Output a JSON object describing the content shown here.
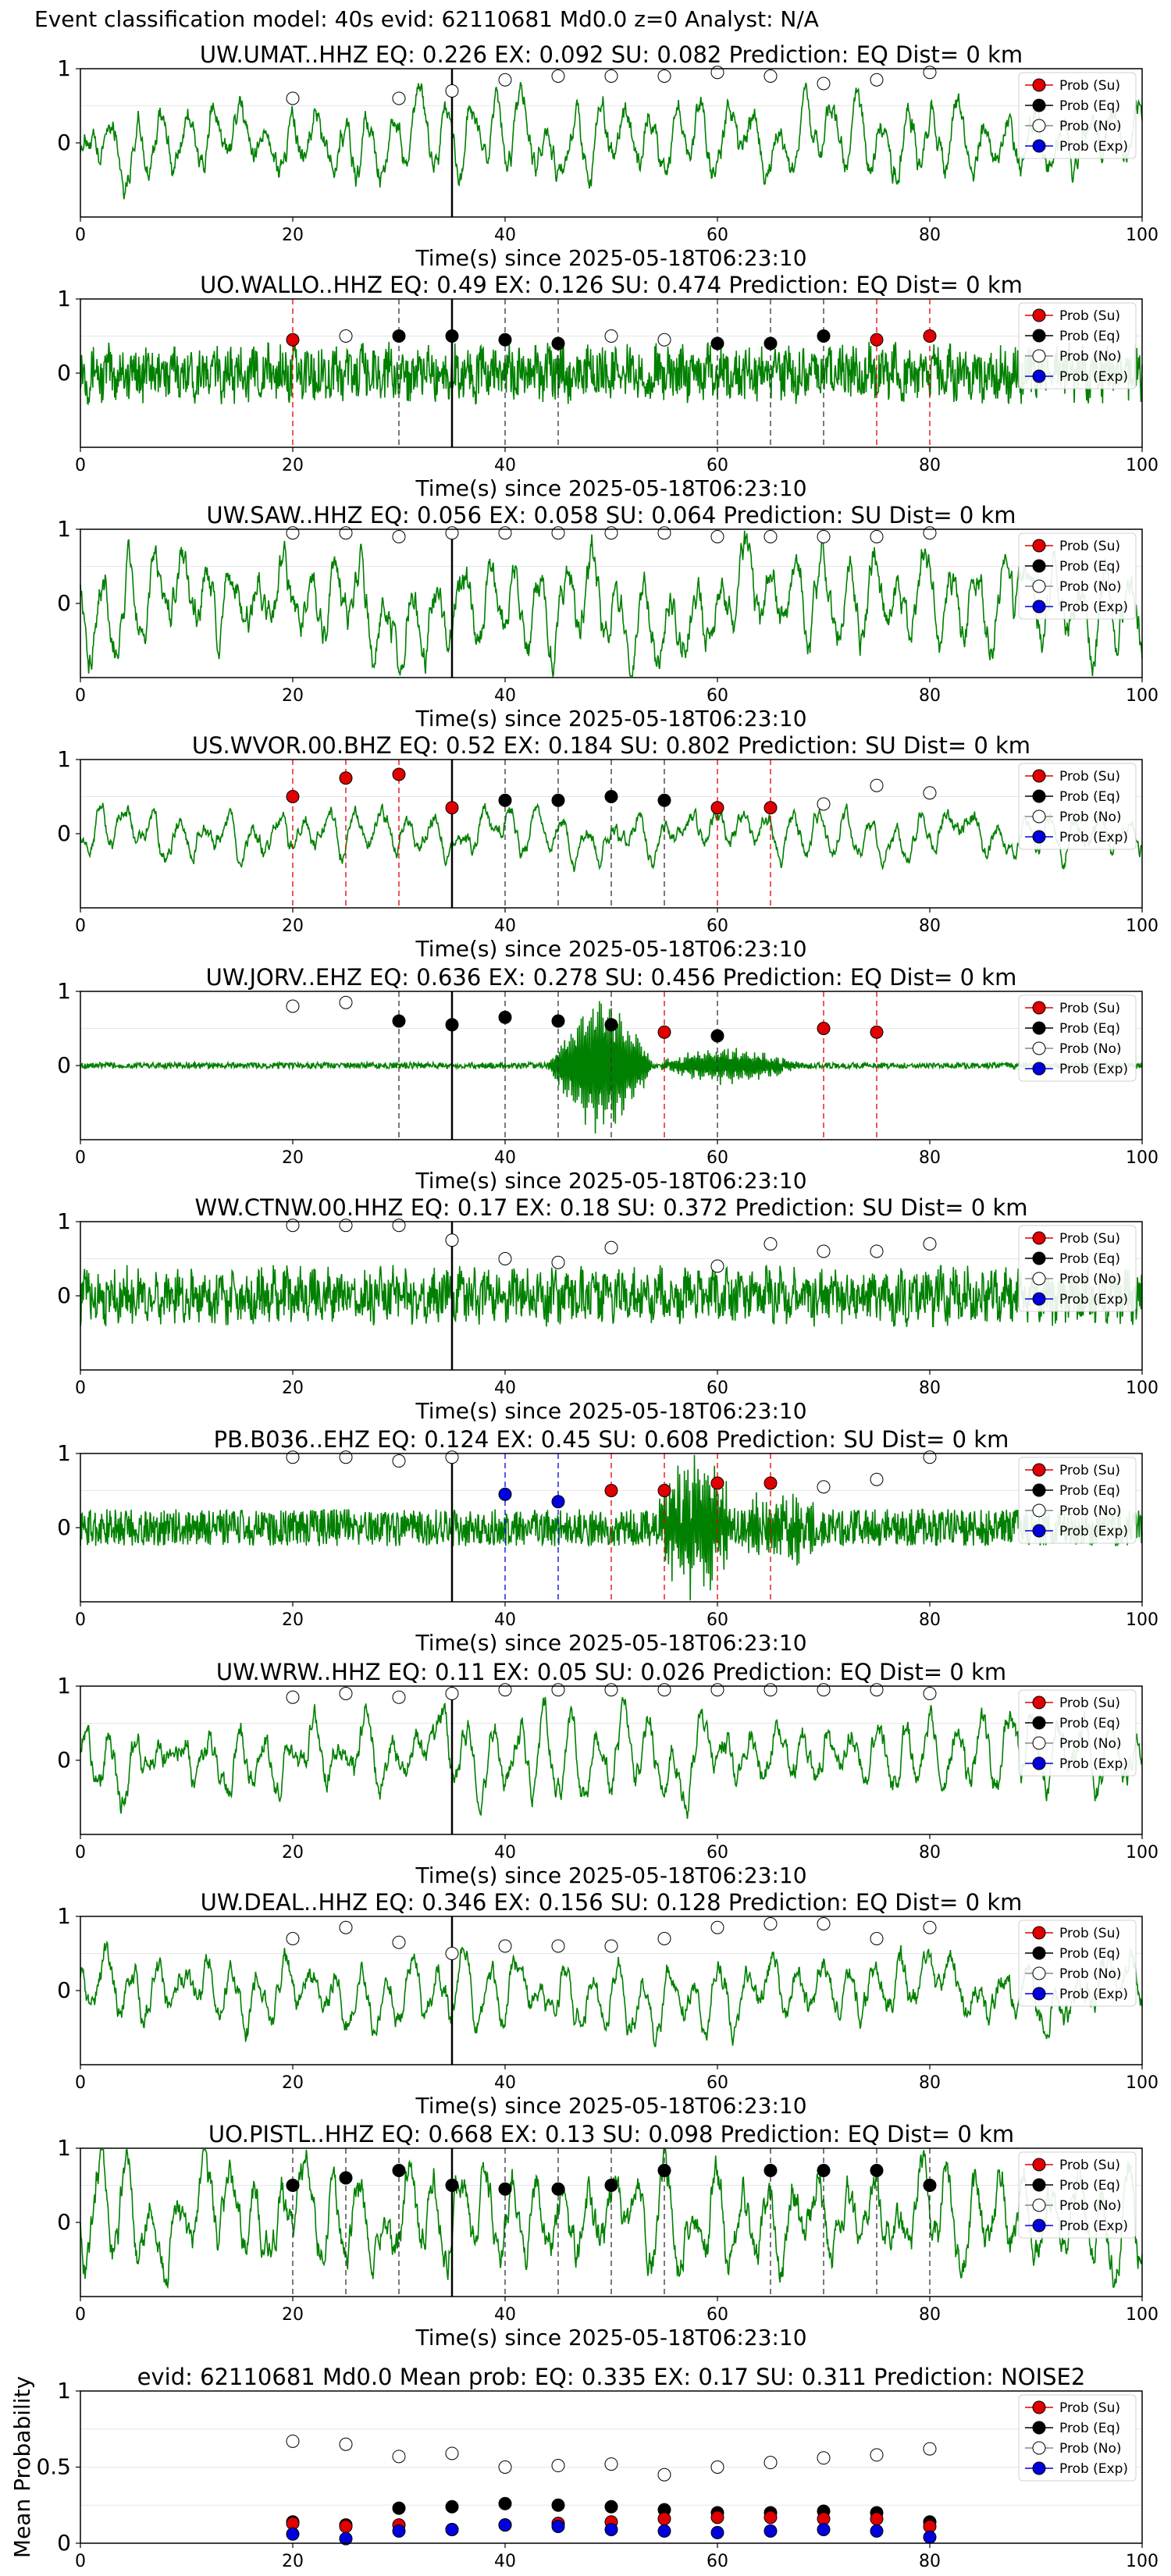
{
  "header": "Event classification model: 40s evid: 62110681 Md0.0 z=0 Analyst: N/A",
  "colors": {
    "su": "#e00000",
    "eq": "#000000",
    "no": "#ffffff",
    "exp": "#0000dd",
    "wave": "#008000"
  },
  "legend": [
    "Prob (Su)",
    "Prob (Eq)",
    "Prob (No)",
    "Prob (Exp)"
  ],
  "xlabel": "Time(s) since 2025-05-18T06:23:10",
  "xticks": [
    0,
    20,
    40,
    60,
    80,
    100
  ],
  "pick_time": 35,
  "chart_data": [
    {
      "type": "line",
      "title": "UW.UMAT..HHZ   EQ: 0.226  EX: 0.092  SU: 0.082   Prediction: EQ    Dist= 0 km",
      "style": "lowfreq",
      "amp": 0.55,
      "xlim": [
        0,
        100
      ],
      "ylim": [
        -1,
        1
      ],
      "yticks": [
        0,
        1
      ],
      "xlabel": "Time(s) since 2025-05-18T06:23:10",
      "windows": [
        {
          "t": 20,
          "p": 0.6,
          "c": "no",
          "line": false
        },
        {
          "t": 30,
          "p": 0.6,
          "c": "no",
          "line": false
        },
        {
          "t": 35,
          "p": 0.7,
          "c": "no",
          "line": false
        },
        {
          "t": 40,
          "p": 0.85,
          "c": "no",
          "line": false
        },
        {
          "t": 45,
          "p": 0.9,
          "c": "no",
          "line": false
        },
        {
          "t": 50,
          "p": 0.9,
          "c": "no",
          "line": false
        },
        {
          "t": 55,
          "p": 0.9,
          "c": "no",
          "line": false
        },
        {
          "t": 60,
          "p": 0.95,
          "c": "no",
          "line": false
        },
        {
          "t": 65,
          "p": 0.9,
          "c": "no",
          "line": false
        },
        {
          "t": 70,
          "p": 0.8,
          "c": "no",
          "line": false
        },
        {
          "t": 75,
          "p": 0.85,
          "c": "no",
          "line": false
        },
        {
          "t": 80,
          "p": 0.95,
          "c": "no",
          "line": false
        }
      ]
    },
    {
      "type": "line",
      "title": "UO.WALLO..HHZ   EQ: 0.49  EX: 0.126  SU: 0.474   Prediction: EQ    Dist= 0 km",
      "style": "noise",
      "amp": 0.45,
      "xlim": [
        0,
        100
      ],
      "ylim": [
        -1,
        1
      ],
      "yticks": [
        0,
        1
      ],
      "xlabel": "Time(s) since 2025-05-18T06:23:10",
      "windows": [
        {
          "t": 20,
          "p": 0.45,
          "c": "su",
          "line": true
        },
        {
          "t": 25,
          "p": 0.5,
          "c": "no",
          "line": false
        },
        {
          "t": 30,
          "p": 0.5,
          "c": "eq",
          "line": true
        },
        {
          "t": 35,
          "p": 0.5,
          "c": "eq",
          "line": false
        },
        {
          "t": 40,
          "p": 0.45,
          "c": "eq",
          "line": true
        },
        {
          "t": 45,
          "p": 0.4,
          "c": "eq",
          "line": true
        },
        {
          "t": 50,
          "p": 0.5,
          "c": "no",
          "line": false
        },
        {
          "t": 55,
          "p": 0.45,
          "c": "no",
          "line": false
        },
        {
          "t": 60,
          "p": 0.4,
          "c": "eq",
          "line": true
        },
        {
          "t": 65,
          "p": 0.4,
          "c": "eq",
          "line": true
        },
        {
          "t": 70,
          "p": 0.5,
          "c": "eq",
          "line": true
        },
        {
          "t": 75,
          "p": 0.45,
          "c": "su",
          "line": true
        },
        {
          "t": 80,
          "p": 0.5,
          "c": "su",
          "line": true
        }
      ]
    },
    {
      "type": "line",
      "title": "UW.SAW..HHZ   EQ: 0.056  EX: 0.058  SU: 0.064   Prediction: SU    Dist= 0 km",
      "style": "lowfreq",
      "amp": 0.7,
      "xlim": [
        0,
        100
      ],
      "ylim": [
        -1,
        1
      ],
      "yticks": [
        0,
        1
      ],
      "xlabel": "Time(s) since 2025-05-18T06:23:10",
      "windows": [
        {
          "t": 20,
          "p": 0.95,
          "c": "no",
          "line": false
        },
        {
          "t": 25,
          "p": 0.95,
          "c": "no",
          "line": false
        },
        {
          "t": 30,
          "p": 0.9,
          "c": "no",
          "line": false
        },
        {
          "t": 35,
          "p": 0.95,
          "c": "no",
          "line": false
        },
        {
          "t": 40,
          "p": 0.95,
          "c": "no",
          "line": false
        },
        {
          "t": 45,
          "p": 0.95,
          "c": "no",
          "line": false
        },
        {
          "t": 50,
          "p": 0.95,
          "c": "no",
          "line": false
        },
        {
          "t": 55,
          "p": 0.95,
          "c": "no",
          "line": false
        },
        {
          "t": 60,
          "p": 0.9,
          "c": "no",
          "line": false
        },
        {
          "t": 65,
          "p": 0.9,
          "c": "no",
          "line": false
        },
        {
          "t": 70,
          "p": 0.9,
          "c": "no",
          "line": false
        },
        {
          "t": 75,
          "p": 0.9,
          "c": "no",
          "line": false
        },
        {
          "t": 80,
          "p": 0.95,
          "c": "no",
          "line": false
        }
      ]
    },
    {
      "type": "line",
      "title": "US.WVOR.00.BHZ   EQ: 0.52  EX: 0.184  SU: 0.802   Prediction: SU    Dist= 0 km",
      "style": "lowfreq",
      "amp": 0.35,
      "xlim": [
        0,
        100
      ],
      "ylim": [
        -1,
        1
      ],
      "yticks": [
        0,
        1
      ],
      "xlabel": "Time(s) since 2025-05-18T06:23:10",
      "windows": [
        {
          "t": 20,
          "p": 0.5,
          "c": "su",
          "line": true
        },
        {
          "t": 25,
          "p": 0.75,
          "c": "su",
          "line": true
        },
        {
          "t": 30,
          "p": 0.8,
          "c": "su",
          "line": true
        },
        {
          "t": 35,
          "p": 0.35,
          "c": "su",
          "line": false
        },
        {
          "t": 40,
          "p": 0.45,
          "c": "eq",
          "line": true
        },
        {
          "t": 45,
          "p": 0.45,
          "c": "eq",
          "line": true
        },
        {
          "t": 50,
          "p": 0.5,
          "c": "eq",
          "line": true
        },
        {
          "t": 55,
          "p": 0.45,
          "c": "eq",
          "line": true
        },
        {
          "t": 60,
          "p": 0.35,
          "c": "su",
          "line": true
        },
        {
          "t": 65,
          "p": 0.35,
          "c": "su",
          "line": true
        },
        {
          "t": 70,
          "p": 0.4,
          "c": "no",
          "line": false
        },
        {
          "t": 75,
          "p": 0.65,
          "c": "no",
          "line": false
        },
        {
          "t": 80,
          "p": 0.55,
          "c": "no",
          "line": false
        }
      ]
    },
    {
      "type": "line",
      "title": "UW.JORV..EHZ   EQ: 0.636  EX: 0.278  SU: 0.456   Prediction: EQ    Dist= 0 km",
      "style": "burst",
      "amp": 0.04,
      "burst": [
        [
          44,
          54,
          0.95
        ],
        [
          54,
          68,
          0.25
        ]
      ],
      "xlim": [
        0,
        100
      ],
      "ylim": [
        -1,
        1
      ],
      "yticks": [
        0,
        1
      ],
      "xlabel": "Time(s) since 2025-05-18T06:23:10",
      "windows": [
        {
          "t": 20,
          "p": 0.8,
          "c": "no",
          "line": false
        },
        {
          "t": 25,
          "p": 0.85,
          "c": "no",
          "line": false
        },
        {
          "t": 30,
          "p": 0.6,
          "c": "eq",
          "line": true
        },
        {
          "t": 35,
          "p": 0.55,
          "c": "eq",
          "line": false
        },
        {
          "t": 40,
          "p": 0.65,
          "c": "eq",
          "line": true
        },
        {
          "t": 45,
          "p": 0.6,
          "c": "eq",
          "line": true
        },
        {
          "t": 50,
          "p": 0.55,
          "c": "eq",
          "line": true
        },
        {
          "t": 55,
          "p": 0.45,
          "c": "su",
          "line": true
        },
        {
          "t": 60,
          "p": 0.4,
          "c": "eq",
          "line": true
        },
        {
          "t": 70,
          "p": 0.5,
          "c": "su",
          "line": true
        },
        {
          "t": 75,
          "p": 0.45,
          "c": "su",
          "line": true
        }
      ]
    },
    {
      "type": "line",
      "title": "WW.CTNW.00.HHZ   EQ: 0.17  EX: 0.18  SU: 0.372   Prediction: SU    Dist= 0 km",
      "style": "noise",
      "amp": 0.45,
      "xlim": [
        0,
        100
      ],
      "ylim": [
        -1,
        1
      ],
      "yticks": [
        0,
        1
      ],
      "xlabel": "Time(s) since 2025-05-18T06:23:10",
      "windows": [
        {
          "t": 20,
          "p": 0.95,
          "c": "no",
          "line": false
        },
        {
          "t": 25,
          "p": 0.95,
          "c": "no",
          "line": false
        },
        {
          "t": 30,
          "p": 0.95,
          "c": "no",
          "line": false
        },
        {
          "t": 35,
          "p": 0.75,
          "c": "no",
          "line": false
        },
        {
          "t": 40,
          "p": 0.5,
          "c": "no",
          "line": false
        },
        {
          "t": 45,
          "p": 0.45,
          "c": "no",
          "line": false
        },
        {
          "t": 50,
          "p": 0.65,
          "c": "no",
          "line": false
        },
        {
          "t": 60,
          "p": 0.4,
          "c": "no",
          "line": false
        },
        {
          "t": 65,
          "p": 0.7,
          "c": "no",
          "line": false
        },
        {
          "t": 70,
          "p": 0.6,
          "c": "no",
          "line": false
        },
        {
          "t": 75,
          "p": 0.6,
          "c": "no",
          "line": false
        },
        {
          "t": 80,
          "p": 0.7,
          "c": "no",
          "line": false
        }
      ]
    },
    {
      "type": "line",
      "title": "PB.B036..EHZ   EQ: 0.124  EX: 0.45  SU: 0.608   Prediction: SU    Dist= 0 km",
      "style": "burst",
      "amp": 0.25,
      "burst": [
        [
          54,
          62,
          0.95
        ],
        [
          62,
          70,
          0.45
        ]
      ],
      "xlim": [
        0,
        100
      ],
      "ylim": [
        -1,
        1
      ],
      "yticks": [
        0,
        1
      ],
      "xlabel": "Time(s) since 2025-05-18T06:23:10",
      "windows": [
        {
          "t": 20,
          "p": 0.95,
          "c": "no",
          "line": false
        },
        {
          "t": 25,
          "p": 0.95,
          "c": "no",
          "line": false
        },
        {
          "t": 30,
          "p": 0.9,
          "c": "no",
          "line": false
        },
        {
          "t": 35,
          "p": 0.95,
          "c": "no",
          "line": false
        },
        {
          "t": 40,
          "p": 0.45,
          "c": "exp",
          "line": true
        },
        {
          "t": 45,
          "p": 0.35,
          "c": "exp",
          "line": true
        },
        {
          "t": 50,
          "p": 0.5,
          "c": "su",
          "line": true
        },
        {
          "t": 55,
          "p": 0.5,
          "c": "su",
          "line": true
        },
        {
          "t": 60,
          "p": 0.6,
          "c": "su",
          "line": true
        },
        {
          "t": 65,
          "p": 0.6,
          "c": "su",
          "line": true
        },
        {
          "t": 70,
          "p": 0.55,
          "c": "no",
          "line": false
        },
        {
          "t": 75,
          "p": 0.65,
          "c": "no",
          "line": false
        },
        {
          "t": 80,
          "p": 0.95,
          "c": "no",
          "line": false
        }
      ]
    },
    {
      "type": "line",
      "title": "UW.WRW..HHZ   EQ: 0.11  EX: 0.05  SU: 0.026   Prediction: EQ    Dist= 0 km",
      "style": "lowfreq",
      "amp": 0.55,
      "xlim": [
        0,
        100
      ],
      "ylim": [
        -1,
        1
      ],
      "yticks": [
        0,
        1
      ],
      "xlabel": "Time(s) since 2025-05-18T06:23:10",
      "windows": [
        {
          "t": 20,
          "p": 0.85,
          "c": "no",
          "line": false
        },
        {
          "t": 25,
          "p": 0.9,
          "c": "no",
          "line": false
        },
        {
          "t": 30,
          "p": 0.85,
          "c": "no",
          "line": false
        },
        {
          "t": 35,
          "p": 0.9,
          "c": "no",
          "line": false
        },
        {
          "t": 40,
          "p": 0.95,
          "c": "no",
          "line": false
        },
        {
          "t": 45,
          "p": 0.95,
          "c": "no",
          "line": false
        },
        {
          "t": 50,
          "p": 0.95,
          "c": "no",
          "line": false
        },
        {
          "t": 55,
          "p": 0.95,
          "c": "no",
          "line": false
        },
        {
          "t": 60,
          "p": 0.95,
          "c": "no",
          "line": false
        },
        {
          "t": 65,
          "p": 0.95,
          "c": "no",
          "line": false
        },
        {
          "t": 70,
          "p": 0.95,
          "c": "no",
          "line": false
        },
        {
          "t": 75,
          "p": 0.95,
          "c": "no",
          "line": false
        },
        {
          "t": 80,
          "p": 0.9,
          "c": "no",
          "line": false
        }
      ]
    },
    {
      "type": "line",
      "title": "UW.DEAL..HHZ   EQ: 0.346  EX: 0.156  SU: 0.128   Prediction: EQ    Dist= 0 km",
      "style": "lowfreq",
      "amp": 0.5,
      "xlim": [
        0,
        100
      ],
      "ylim": [
        -1,
        1
      ],
      "yticks": [
        0,
        1
      ],
      "xlabel": "Time(s) since 2025-05-18T06:23:10",
      "windows": [
        {
          "t": 20,
          "p": 0.7,
          "c": "no",
          "line": false
        },
        {
          "t": 25,
          "p": 0.85,
          "c": "no",
          "line": false
        },
        {
          "t": 30,
          "p": 0.65,
          "c": "no",
          "line": false
        },
        {
          "t": 35,
          "p": 0.5,
          "c": "no",
          "line": false
        },
        {
          "t": 40,
          "p": 0.6,
          "c": "no",
          "line": false
        },
        {
          "t": 45,
          "p": 0.6,
          "c": "no",
          "line": false
        },
        {
          "t": 50,
          "p": 0.6,
          "c": "no",
          "line": false
        },
        {
          "t": 55,
          "p": 0.7,
          "c": "no",
          "line": false
        },
        {
          "t": 60,
          "p": 0.85,
          "c": "no",
          "line": false
        },
        {
          "t": 65,
          "p": 0.9,
          "c": "no",
          "line": false
        },
        {
          "t": 70,
          "p": 0.9,
          "c": "no",
          "line": false
        },
        {
          "t": 75,
          "p": 0.7,
          "c": "no",
          "line": false
        },
        {
          "t": 80,
          "p": 0.85,
          "c": "no",
          "line": false
        }
      ]
    },
    {
      "type": "line",
      "title": "UO.PISTL..HHZ   EQ: 0.668  EX: 0.13  SU: 0.098   Prediction: EQ    Dist= 0 km",
      "style": "lowfreq",
      "amp": 0.75,
      "xlim": [
        0,
        100
      ],
      "ylim": [
        -1,
        1
      ],
      "yticks": [
        0,
        1
      ],
      "xlabel": "Time(s) since 2025-05-18T06:23:10",
      "windows": [
        {
          "t": 20,
          "p": 0.5,
          "c": "eq",
          "line": true
        },
        {
          "t": 25,
          "p": 0.6,
          "c": "eq",
          "line": true
        },
        {
          "t": 30,
          "p": 0.7,
          "c": "eq",
          "line": true
        },
        {
          "t": 35,
          "p": 0.5,
          "c": "eq",
          "line": false
        },
        {
          "t": 40,
          "p": 0.45,
          "c": "eq",
          "line": true
        },
        {
          "t": 45,
          "p": 0.45,
          "c": "eq",
          "line": true
        },
        {
          "t": 50,
          "p": 0.5,
          "c": "eq",
          "line": true
        },
        {
          "t": 55,
          "p": 0.7,
          "c": "eq",
          "line": true
        },
        {
          "t": 65,
          "p": 0.7,
          "c": "eq",
          "line": true
        },
        {
          "t": 70,
          "p": 0.7,
          "c": "eq",
          "line": true
        },
        {
          "t": 75,
          "p": 0.7,
          "c": "eq",
          "line": true
        },
        {
          "t": 80,
          "p": 0.5,
          "c": "eq",
          "line": true
        }
      ]
    },
    {
      "type": "scatter",
      "title": "evid: 62110681  Md0.0   Mean prob:   EQ: 0.335  EX: 0.17  SU: 0.311   Prediction: NOISE2",
      "xlim": [
        0,
        100
      ],
      "ylim": [
        0,
        1
      ],
      "yticks": [
        0,
        0.5,
        1
      ],
      "ylabel": "Mean Probability",
      "x": [
        20,
        25,
        30,
        35,
        40,
        45,
        50,
        55,
        60,
        65,
        70,
        75,
        80
      ],
      "series": [
        {
          "name": "Prob (No)",
          "key": "no",
          "values": [
            0.67,
            0.65,
            0.57,
            0.59,
            0.5,
            0.51,
            0.52,
            0.45,
            0.5,
            0.53,
            0.56,
            0.58,
            0.62
          ]
        },
        {
          "name": "Prob (Eq)",
          "key": "eq",
          "values": [
            0.14,
            0.12,
            0.23,
            0.24,
            0.26,
            0.25,
            0.24,
            0.22,
            0.2,
            0.2,
            0.21,
            0.2,
            0.14
          ]
        },
        {
          "name": "Prob (Su)",
          "key": "su",
          "values": [
            0.13,
            0.11,
            0.12,
            0.09,
            0.12,
            0.13,
            0.14,
            0.16,
            0.17,
            0.17,
            0.16,
            0.16,
            0.11
          ]
        },
        {
          "name": "Prob (Exp)",
          "key": "exp",
          "values": [
            0.06,
            0.03,
            0.08,
            0.09,
            0.12,
            0.11,
            0.09,
            0.08,
            0.07,
            0.08,
            0.09,
            0.08,
            0.04
          ]
        }
      ]
    }
  ]
}
